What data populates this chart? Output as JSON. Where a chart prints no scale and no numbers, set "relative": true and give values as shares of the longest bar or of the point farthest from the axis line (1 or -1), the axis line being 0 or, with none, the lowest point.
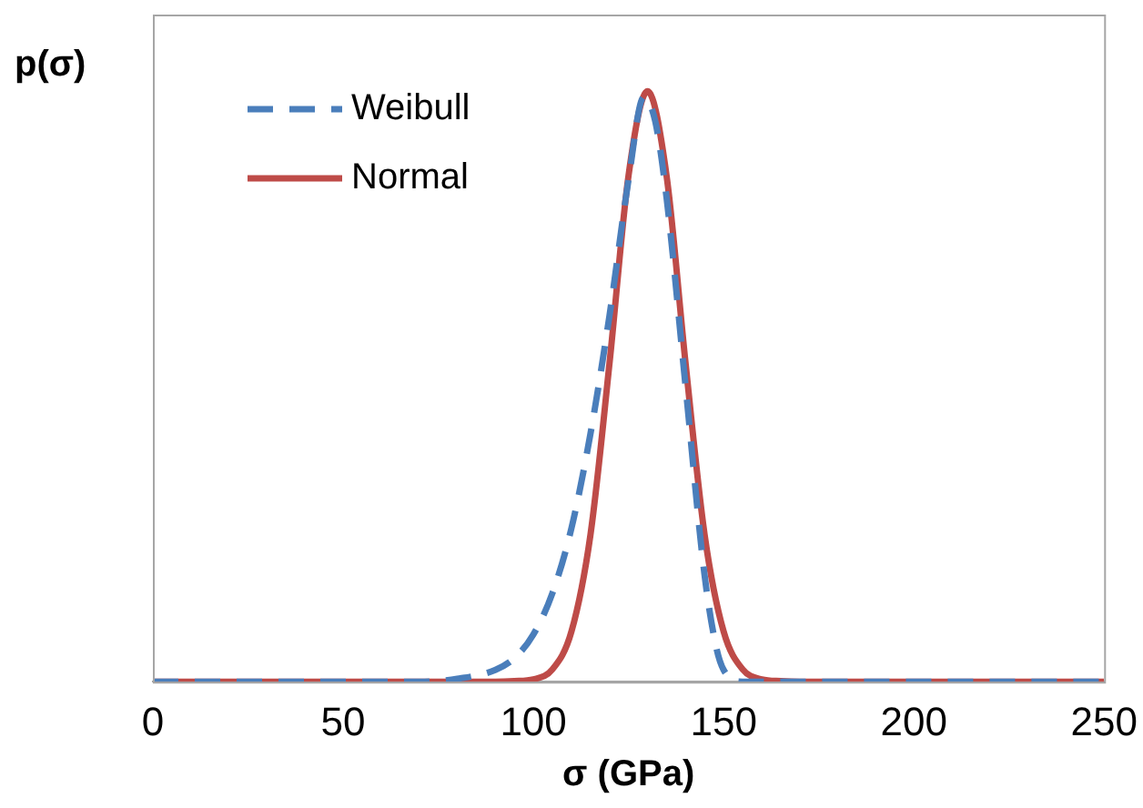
{
  "chart_data": {
    "type": "line",
    "relative": true,
    "ylabel": "p(σ)",
    "xlabel": "σ (GPa)",
    "xlim": [
      0,
      250
    ],
    "xticks": [
      0,
      50,
      100,
      150,
      200,
      250
    ],
    "grid": false,
    "legend": "top left",
    "marker": "none",
    "series": [
      {
        "name": "Weibull",
        "color": "#4a7ebb",
        "line_style": "dashed",
        "x": [
          0,
          70,
          80,
          90,
          95,
          100,
          105,
          110,
          115,
          120,
          125,
          129,
          132,
          135,
          140,
          145,
          148,
          150,
          155,
          160,
          250
        ],
        "values": [
          0,
          0,
          0.005,
          0.02,
          0.04,
          0.08,
          0.15,
          0.26,
          0.42,
          0.62,
          0.85,
          0.99,
          0.95,
          0.82,
          0.5,
          0.18,
          0.06,
          0.02,
          0,
          0,
          0
        ]
      },
      {
        "name": "Normal",
        "color": "#be4b48",
        "line_style": "solid",
        "x": [
          0,
          90,
          95,
          100,
          105,
          110,
          115,
          120,
          125,
          130,
          135,
          140,
          145,
          150,
          155,
          160,
          165,
          170,
          250
        ],
        "values": [
          0,
          0,
          0.001,
          0.004,
          0.021,
          0.085,
          0.249,
          0.539,
          0.857,
          1,
          0.857,
          0.539,
          0.249,
          0.085,
          0.021,
          0.004,
          0.001,
          0,
          0
        ]
      }
    ]
  }
}
